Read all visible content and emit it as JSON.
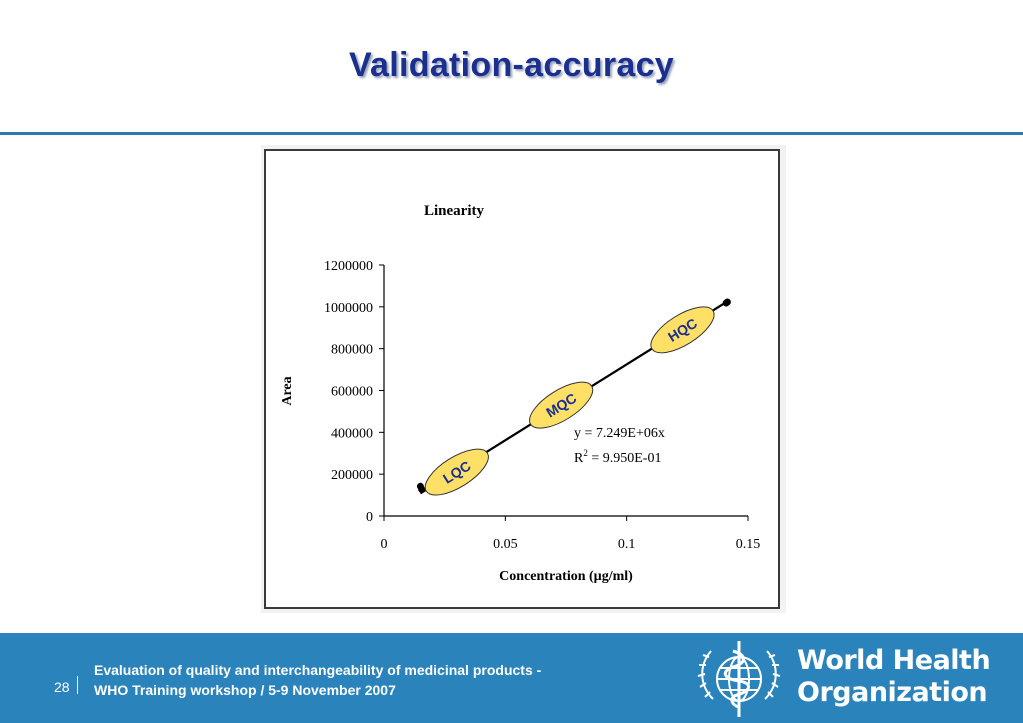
{
  "slide": {
    "title": "Validation-accuracy",
    "page_number": "28",
    "footer_line1": "Evaluation of quality and interchangeability of medicinal products -",
    "footer_line2": "WHO Training workshop / 5-9 November 2007",
    "org_name_line1": "World Health",
    "org_name_line2": "Organization"
  },
  "colors": {
    "title": "#1b2f8f",
    "footer_bar": "#2a83bb",
    "qc_label_fill": "#ffe066",
    "qc_label_text": "#1b2f8f"
  },
  "chart_data": {
    "type": "scatter",
    "title": "Linearity",
    "xlabel": "Concentration (µg/ml)",
    "ylabel": "Area",
    "xlim": [
      0,
      0.15
    ],
    "ylim": [
      0,
      1200000
    ],
    "x_ticks": [
      0,
      0.05,
      0.1,
      0.15
    ],
    "x_tick_labels": [
      "0",
      "0.05",
      "0.1",
      "0.15"
    ],
    "y_ticks": [
      0,
      200000,
      400000,
      600000,
      800000,
      1000000,
      1200000
    ],
    "y_tick_labels": [
      "0",
      "200000",
      "400000",
      "600000",
      "800000",
      "1000000",
      "1200000"
    ],
    "grid": false,
    "series": [
      {
        "x": [
          0.015,
          0.0155,
          0.141,
          0.1415
        ],
        "y": [
          142000,
          128000,
          1018000,
          1023000
        ]
      }
    ],
    "trendline": {
      "equation": "y = 7.249E+06x",
      "r_squared_prefix": "R",
      "r_squared_exponent": "2",
      "r_squared_value": " = 9.950E-01",
      "slope": 7249000,
      "x_range": [
        0.015,
        0.141
      ]
    },
    "annotations": [
      {
        "label": "LQC",
        "x": 0.03,
        "y": 210000
      },
      {
        "label": "MQC",
        "x": 0.073,
        "y": 530000
      },
      {
        "label": "HQC",
        "x": 0.123,
        "y": 890000
      }
    ]
  }
}
